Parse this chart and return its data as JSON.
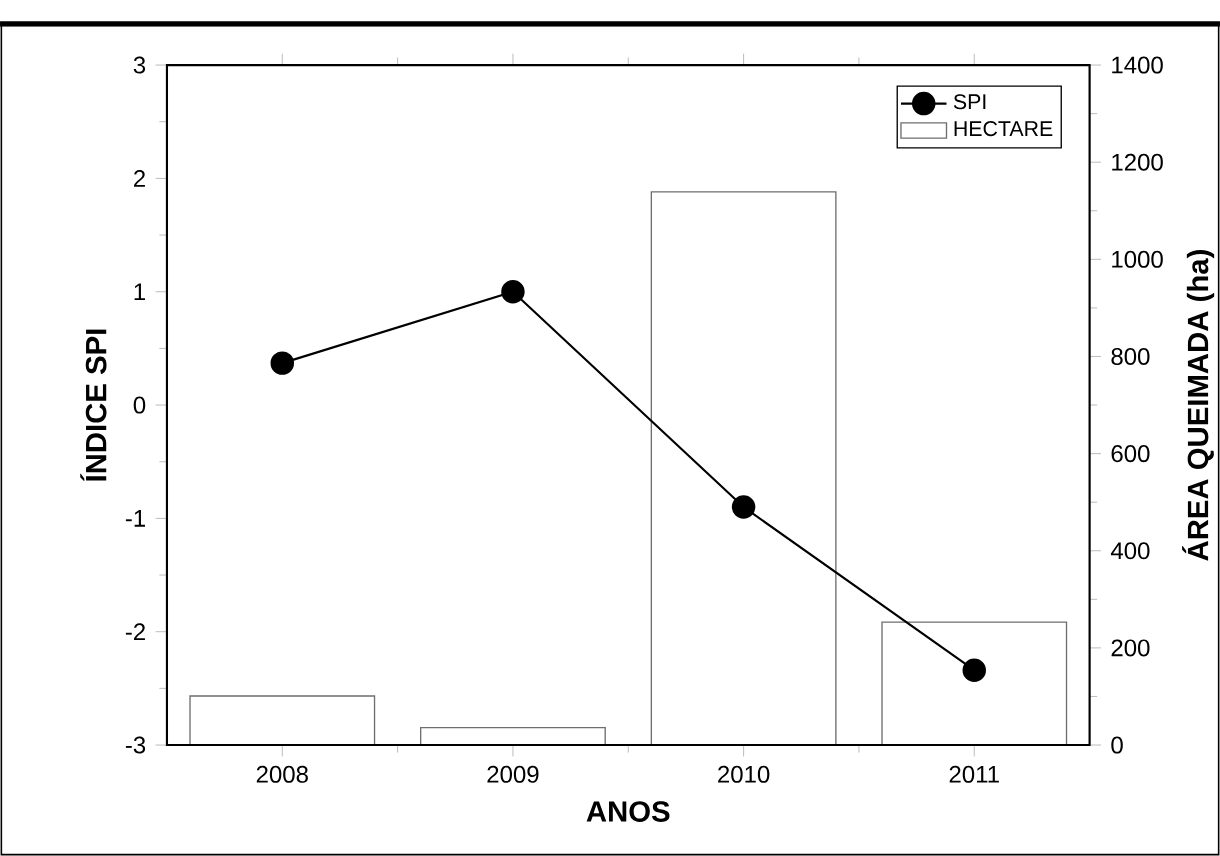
{
  "chart_data": {
    "type": "bar",
    "categories": [
      "2008",
      "2009",
      "2010",
      "2011"
    ],
    "xlabel": "ANOS",
    "ylabel": "ÍNDICE SPI",
    "y2label": "ÁREA QUEIMADA (ha)",
    "ylim": [
      -3,
      3
    ],
    "yticks": [
      -3,
      -2,
      -1,
      0,
      1,
      2,
      3
    ],
    "y2lim": [
      0,
      1400
    ],
    "y2ticks": [
      0,
      200,
      400,
      600,
      800,
      1000,
      1200,
      1400
    ],
    "legend": "top right",
    "marker": "circle",
    "line_style": "solid",
    "series": [
      {
        "name": "SPI",
        "type": "line",
        "color": "#000000",
        "values": [
          0.37,
          1.0,
          -0.9,
          -2.34
        ]
      },
      {
        "name": "HECTARE",
        "axis": "y2",
        "color": "#ffffff",
        "values": [
          101,
          36,
          1139,
          253
        ]
      }
    ]
  }
}
